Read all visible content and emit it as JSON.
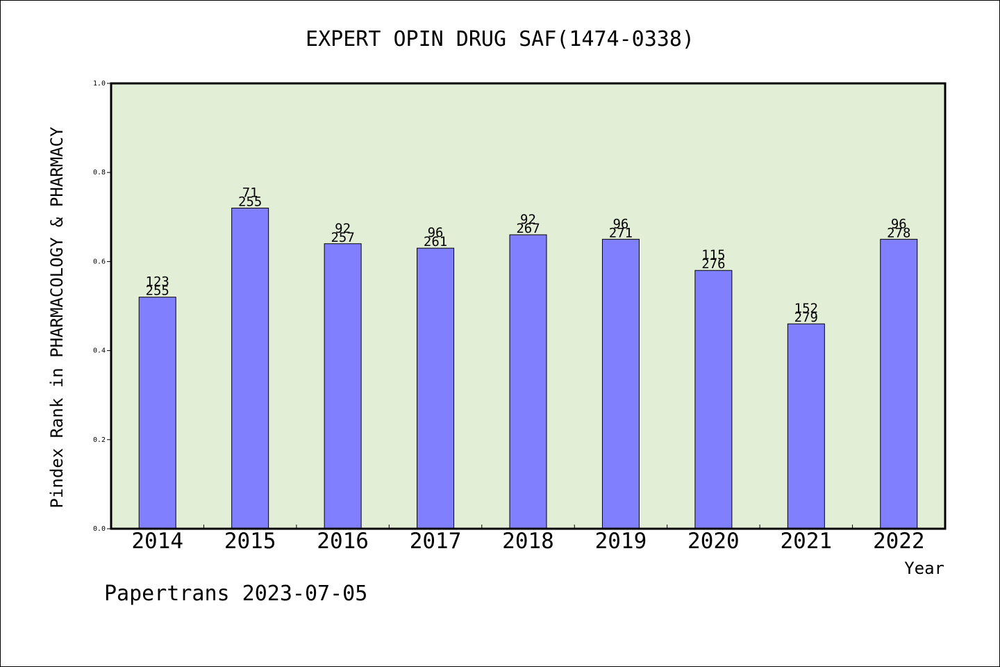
{
  "chart_data": {
    "type": "bar",
    "title": "EXPERT OPIN DRUG SAF(1474-0338)",
    "xlabel": "Year",
    "ylabel": "Pindex Rank in PHARMACOLOGY & PHARMACY",
    "ylim": [
      0,
      1.0
    ],
    "yticks": [
      "0.0",
      "0.2",
      "0.4",
      "0.6",
      "0.8",
      "1.0"
    ],
    "categories": [
      "2014",
      "2015",
      "2016",
      "2017",
      "2018",
      "2019",
      "2020",
      "2021",
      "2022"
    ],
    "values": [
      0.52,
      0.72,
      0.64,
      0.63,
      0.66,
      0.65,
      0.58,
      0.46,
      0.65
    ],
    "labels_top": [
      "123",
      "71",
      "92",
      "96",
      "92",
      "96",
      "115",
      "152",
      "96"
    ],
    "labels_bottom": [
      "255",
      "255",
      "257",
      "261",
      "267",
      "271",
      "276",
      "279",
      "278"
    ],
    "grid": false,
    "colors": {
      "plot_background": "#e2efd6",
      "bar_fill": "#8080ff",
      "axis": "#000000"
    }
  },
  "footer": {
    "watermark": "Papertrans 2023-07-05"
  }
}
